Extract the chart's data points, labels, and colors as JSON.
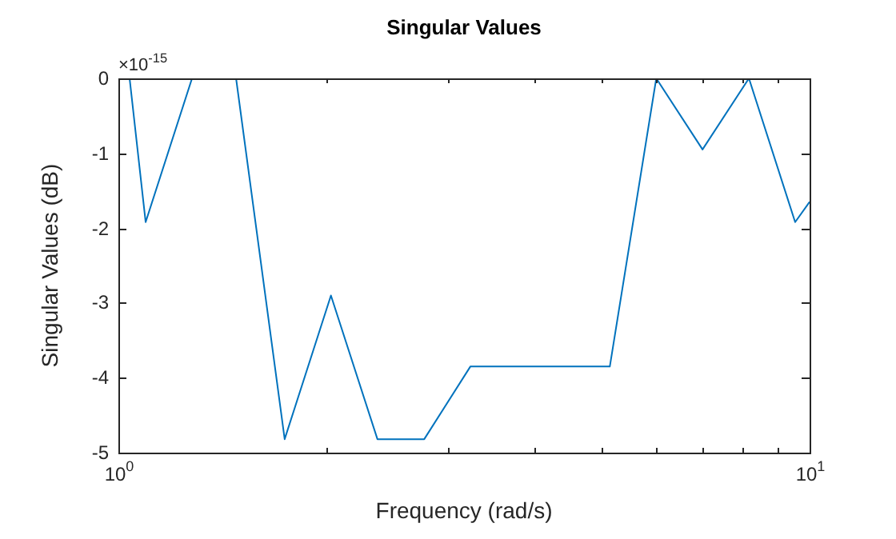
{
  "chart_data": {
    "type": "line",
    "title": "Singular Values",
    "xlabel": "Frequency (rad/s)",
    "ylabel": "Singular Values (dB)",
    "annotations": [
      "×10$^{-15}$"
    ],
    "x": [
      1.038,
      1.095,
      1.278,
      1.48,
      1.74,
      2.03,
      2.37,
      2.77,
      3.23,
      5.14,
      6.0,
      7.0,
      8.17,
      9.53,
      10
    ],
    "series": [
      {
        "color": "#0072bd",
        "values": [
          0,
          -1.92,
          0,
          0,
          -4.82,
          -2.9,
          -4.82,
          -4.82,
          -3.85,
          -3.85,
          0,
          -0.95,
          0,
          -1.92,
          -1.65
        ]
      }
    ],
    "log": "x",
    "grid": false,
    "legend": false,
    "marker": "none",
    "line_style": "solid",
    "xlim": [
      1,
      10
    ],
    "ylim": [
      -5,
      0
    ],
    "xticks": [
      {
        "value": 1,
        "label": "10$^{0}$"
      },
      {
        "value": 2,
        "label": null
      },
      {
        "value": 3,
        "label": null
      },
      {
        "value": 4,
        "label": null
      },
      {
        "value": 5,
        "label": null
      },
      {
        "value": 6,
        "label": null
      },
      {
        "value": 7,
        "label": null
      },
      {
        "value": 8,
        "label": null
      },
      {
        "value": 9,
        "label": null
      },
      {
        "value": 10,
        "label": "10$^{1}$"
      }
    ],
    "yticks": [
      -5,
      -4,
      -3,
      -2,
      -1,
      0
    ]
  }
}
